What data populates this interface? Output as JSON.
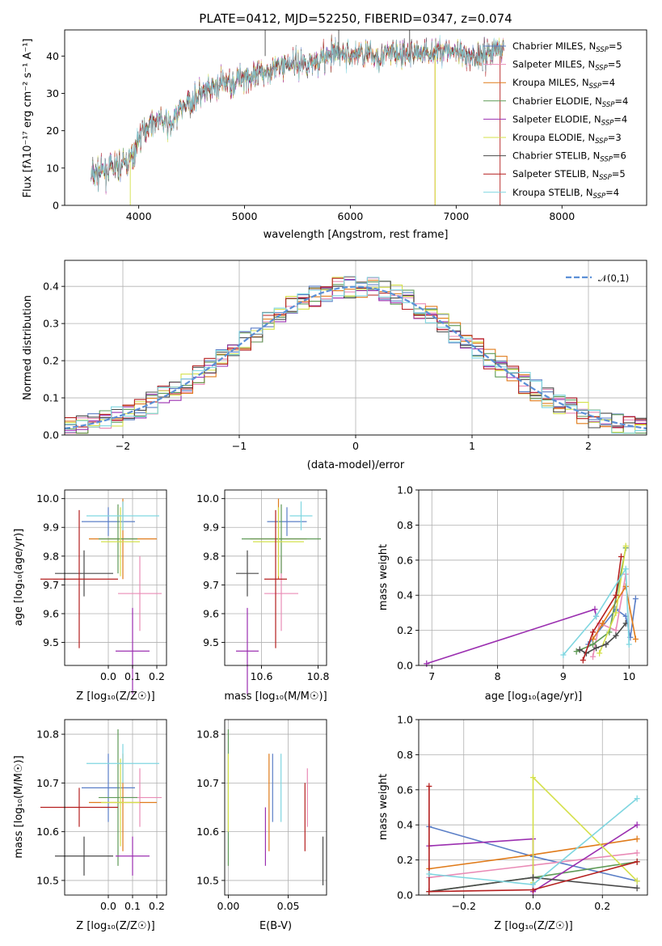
{
  "chart_data": [
    {
      "type": "line",
      "title": "PLATE=0412, MJD=52250, FIBERID=0347, z=0.074",
      "xlabel": "wavelength [Angstrom, rest frame]",
      "ylabel": "Flux [fλ10⁻¹⁷ erg cm⁻² s⁻¹ A⁻¹]",
      "xlim": [
        3300,
        8800
      ],
      "ylim": [
        0,
        47
      ],
      "xticks": [
        "4000",
        "5000",
        "6000",
        "7000",
        "8000"
      ],
      "yticks": [
        "0",
        "10",
        "20",
        "30",
        "40"
      ],
      "legend_position": "right",
      "series": [
        {
          "name": "Chabrier MILES, N_SSP=5",
          "color": "#5b7fc7"
        },
        {
          "name": "Salpeter MILES, N_SSP=5",
          "color": "#e98bb6"
        },
        {
          "name": "Kroupa MILES, N_SSP=4",
          "color": "#e07b1a"
        },
        {
          "name": "Chabrier ELODIE, N_SSP=4",
          "color": "#5f9a57"
        },
        {
          "name": "Salpeter ELODIE, N_SSP=4",
          "color": "#9b2fb0"
        },
        {
          "name": "Kroupa ELODIE, N_SSP=3",
          "color": "#d4e04a"
        },
        {
          "name": "Chabrier STELIB, N_SSP=6",
          "color": "#4a4a4a"
        },
        {
          "name": "Salpeter STELIB, N_SSP=5",
          "color": "#b51f1f"
        },
        {
          "name": "Kroupa STELIB, N_SSP=4",
          "color": "#7fd6e0"
        }
      ],
      "continuum": {
        "x": [
          3550,
          3650,
          3750,
          3850,
          3950,
          4000,
          4100,
          4200,
          4300,
          4400,
          4500,
          4600,
          4700,
          4800,
          4900,
          5000,
          5100,
          5200,
          5300,
          5400,
          5500,
          5600,
          5700,
          5800,
          5900,
          6000,
          6100,
          6200,
          6300,
          6400,
          6500,
          6600,
          6700,
          6800,
          6900,
          7000,
          7100,
          7200,
          7300,
          7400,
          7500
        ],
        "y": [
          8,
          9,
          10,
          11,
          13,
          18,
          22,
          23,
          21,
          26,
          28,
          30,
          31,
          33,
          33,
          35,
          34,
          36,
          37,
          38,
          38,
          38,
          39,
          40,
          41,
          40,
          41,
          40,
          40,
          41,
          40,
          41,
          41,
          41,
          42,
          41,
          39,
          40,
          41,
          42,
          42
        ]
      }
    },
    {
      "type": "bar",
      "xlabel": "(data-model)/error",
      "ylabel": "Normed distribution",
      "xlim": [
        -2.5,
        2.5
      ],
      "ylim": [
        0,
        0.47
      ],
      "xticks": [
        "−2",
        "−1",
        "0",
        "1",
        "2"
      ],
      "yticks": [
        "0.0",
        "0.1",
        "0.2",
        "0.3",
        "0.4"
      ],
      "grid": true,
      "legend": [
        "𝒩(0,1)"
      ],
      "legend_position": "top-right",
      "bin_width": 0.1
    },
    {
      "type": "scatter",
      "xlabel": "Z [log₁₀(Z/Z☉)]",
      "ylabel": "age  [log₁₀(age/yr)]",
      "xlim": [
        -0.18,
        0.24
      ],
      "ylim": [
        9.42,
        10.03
      ],
      "xticks": [
        "0.0",
        "0.1",
        "0.2"
      ],
      "yticks": [
        "9.5",
        "9.6",
        "9.7",
        "9.8",
        "9.9",
        "10.0"
      ],
      "grid": true,
      "points": [
        {
          "x": 0.0,
          "xerr": 0.11,
          "y": 9.92,
          "yerr": 0.05,
          "color": "#5b7fc7"
        },
        {
          "x": 0.13,
          "xerr": 0.09,
          "y": 9.67,
          "yerr": 0.13,
          "color": "#e98bb6"
        },
        {
          "x": 0.06,
          "xerr": 0.14,
          "y": 9.86,
          "yerr": 0.14,
          "color": "#e07b1a"
        },
        {
          "x": 0.04,
          "xerr": 0.08,
          "y": 9.86,
          "yerr": 0.12,
          "color": "#5f9a57"
        },
        {
          "x": 0.1,
          "xerr": 0.07,
          "y": 9.47,
          "yerr": 0.15,
          "color": "#9b2fb0"
        },
        {
          "x": 0.05,
          "xerr": 0.08,
          "y": 9.85,
          "yerr": 0.12,
          "color": "#d4e04a"
        },
        {
          "x": -0.1,
          "xerr": 0.12,
          "y": 9.74,
          "yerr": 0.08,
          "color": "#4a4a4a"
        },
        {
          "x": -0.12,
          "xerr": 0.16,
          "y": 9.72,
          "yerr": 0.24,
          "color": "#b51f1f"
        },
        {
          "x": 0.06,
          "xerr": 0.15,
          "y": 9.94,
          "yerr": 0.05,
          "color": "#7fd6e0"
        }
      ]
    },
    {
      "type": "scatter",
      "xlabel": "mass [log₁₀(M/M☉)]",
      "xlim": [
        10.47,
        10.83
      ],
      "ylim": [
        9.42,
        10.03
      ],
      "xticks": [
        "10.6",
        "10.8"
      ],
      "yticks": [
        "9.5",
        "9.6",
        "9.7",
        "9.8",
        "9.9",
        "10.0"
      ],
      "grid": true,
      "points": [
        {
          "x": 10.69,
          "xerr": 0.07,
          "y": 9.92,
          "yerr": 0.05,
          "color": "#5b7fc7"
        },
        {
          "x": 10.67,
          "xerr": 0.06,
          "y": 9.67,
          "yerr": 0.13,
          "color": "#e98bb6"
        },
        {
          "x": 10.66,
          "xerr": 0.1,
          "y": 9.86,
          "yerr": 0.14,
          "color": "#e07b1a"
        },
        {
          "x": 10.67,
          "xerr": 0.14,
          "y": 9.86,
          "yerr": 0.12,
          "color": "#5f9a57"
        },
        {
          "x": 10.55,
          "xerr": 0.04,
          "y": 9.47,
          "yerr": 0.15,
          "color": "#9b2fb0"
        },
        {
          "x": 10.66,
          "xerr": 0.09,
          "y": 9.85,
          "yerr": 0.12,
          "color": "#d4e04a"
        },
        {
          "x": 10.55,
          "xerr": 0.04,
          "y": 9.74,
          "yerr": 0.08,
          "color": "#4a4a4a"
        },
        {
          "x": 10.65,
          "xerr": 0.04,
          "y": 9.72,
          "yerr": 0.24,
          "color": "#b51f1f"
        },
        {
          "x": 10.74,
          "xerr": 0.04,
          "y": 9.94,
          "yerr": 0.05,
          "color": "#7fd6e0"
        }
      ]
    },
    {
      "type": "line",
      "xlabel": "age  [log₁₀(age/yr)]",
      "ylabel": "mass weight",
      "xlim": [
        6.8,
        10.28
      ],
      "ylim": [
        0,
        1
      ],
      "xticks": [
        "7",
        "8",
        "9",
        "10"
      ],
      "yticks": [
        "0.0",
        "0.2",
        "0.4",
        "0.6",
        "0.8",
        "1.0"
      ],
      "grid": true,
      "series": [
        {
          "color": "#5b7fc7",
          "x": [
            9.38,
            9.8,
            9.95,
            10.02,
            10.1
          ],
          "y": [
            0.12,
            0.32,
            0.28,
            0.16,
            0.38
          ]
        },
        {
          "color": "#e98bb6",
          "x": [
            9.45,
            9.55,
            9.8,
            9.95
          ],
          "y": [
            0.05,
            0.24,
            0.2,
            0.52
          ]
        },
        {
          "color": "#e07b1a",
          "x": [
            9.45,
            9.6,
            9.95,
            10.1
          ],
          "y": [
            0.15,
            0.24,
            0.45,
            0.15
          ]
        },
        {
          "color": "#5f9a57",
          "x": [
            9.2,
            9.45,
            9.7,
            9.95
          ],
          "y": [
            0.08,
            0.12,
            0.19,
            0.67
          ]
        },
        {
          "color": "#9b2fb0",
          "x": [
            6.92,
            9.48,
            9.5
          ],
          "y": [
            0.01,
            0.32,
            0.28
          ]
        },
        {
          "color": "#d4e04a",
          "x": [
            9.55,
            9.8,
            9.95
          ],
          "y": [
            0.07,
            0.3,
            0.68
          ]
        },
        {
          "color": "#4a4a4a",
          "x": [
            9.25,
            9.35,
            9.5,
            9.65,
            9.8,
            9.95
          ],
          "y": [
            0.09,
            0.07,
            0.1,
            0.12,
            0.17,
            0.24
          ]
        },
        {
          "color": "#b51f1f",
          "x": [
            9.3,
            9.45,
            9.8,
            9.88
          ],
          "y": [
            0.03,
            0.19,
            0.4,
            0.62
          ]
        },
        {
          "color": "#7fd6e0",
          "x": [
            9.0,
            9.5,
            9.95,
            10.0
          ],
          "y": [
            0.06,
            0.28,
            0.55,
            0.12
          ]
        }
      ]
    },
    {
      "type": "scatter",
      "xlabel": "Z [log₁₀(Z/Z☉)]",
      "ylabel": "mass [log₁₀(M/M☉)]",
      "xlim": [
        -0.18,
        0.24
      ],
      "ylim": [
        10.47,
        10.83
      ],
      "xticks": [
        "0.0",
        "0.1",
        "0.2"
      ],
      "yticks": [
        "10.5",
        "10.6",
        "10.7",
        "10.8"
      ],
      "grid": true,
      "points": [
        {
          "x": 0.0,
          "xerr": 0.11,
          "y": 10.69,
          "yerr": 0.07,
          "color": "#5b7fc7"
        },
        {
          "x": 0.13,
          "xerr": 0.09,
          "y": 10.67,
          "yerr": 0.06,
          "color": "#e98bb6"
        },
        {
          "x": 0.06,
          "xerr": 0.14,
          "y": 10.66,
          "yerr": 0.1,
          "color": "#e07b1a"
        },
        {
          "x": 0.04,
          "xerr": 0.08,
          "y": 10.67,
          "yerr": 0.14,
          "color": "#5f9a57"
        },
        {
          "x": 0.1,
          "xerr": 0.07,
          "y": 10.55,
          "yerr": 0.04,
          "color": "#9b2fb0"
        },
        {
          "x": 0.05,
          "xerr": 0.08,
          "y": 10.66,
          "yerr": 0.09,
          "color": "#d4e04a"
        },
        {
          "x": -0.1,
          "xerr": 0.12,
          "y": 10.55,
          "yerr": 0.04,
          "color": "#4a4a4a"
        },
        {
          "x": -0.12,
          "xerr": 0.16,
          "y": 10.65,
          "yerr": 0.04,
          "color": "#b51f1f"
        },
        {
          "x": 0.06,
          "xerr": 0.15,
          "y": 10.74,
          "yerr": 0.04,
          "color": "#7fd6e0"
        }
      ]
    },
    {
      "type": "scatter",
      "xlabel": "E(B-V)",
      "xlim": [
        -0.003,
        0.082
      ],
      "ylim": [
        10.47,
        10.83
      ],
      "xticks": [
        "0.00",
        "0.05"
      ],
      "yticks": [
        "10.5",
        "10.6",
        "10.7",
        "10.8"
      ],
      "grid": true,
      "points": [
        {
          "x": 0.037,
          "y": 10.69,
          "yerr": 0.07,
          "color": "#5b7fc7"
        },
        {
          "x": 0.066,
          "y": 10.67,
          "yerr": 0.06,
          "color": "#e98bb6"
        },
        {
          "x": 0.034,
          "y": 10.66,
          "yerr": 0.1,
          "color": "#e07b1a"
        },
        {
          "x": 0.0,
          "y": 10.67,
          "yerr": 0.14,
          "color": "#5f9a57"
        },
        {
          "x": 0.031,
          "y": 10.59,
          "yerr": 0.06,
          "color": "#9b2fb0"
        },
        {
          "x": 0.0,
          "y": 10.68,
          "yerr": 0.08,
          "color": "#d4e04a"
        },
        {
          "x": 0.079,
          "y": 10.54,
          "yerr": 0.05,
          "color": "#4a4a4a"
        },
        {
          "x": 0.064,
          "y": 10.63,
          "yerr": 0.07,
          "color": "#b51f1f"
        },
        {
          "x": 0.044,
          "y": 10.69,
          "yerr": 0.07,
          "color": "#7fd6e0"
        }
      ]
    },
    {
      "type": "line",
      "xlabel": "Z [log₁₀(Z/Z☉)]",
      "ylabel": "mass weight",
      "xlim": [
        -0.33,
        0.33
      ],
      "ylim": [
        0,
        1
      ],
      "xticks": [
        "−0.2",
        "0.0",
        "0.2"
      ],
      "yticks": [
        "0.0",
        "0.2",
        "0.4",
        "0.6",
        "0.8",
        "1.0"
      ],
      "grid": true,
      "series": [
        {
          "color": "#5b7fc7",
          "x": [
            -0.3,
            0.0,
            0.3
          ],
          "y": [
            0.39,
            0.22,
            0.08
          ]
        },
        {
          "color": "#e98bb6",
          "x": [
            -0.3,
            0.0,
            0.3
          ],
          "y": [
            0.1,
            0.17,
            0.24
          ]
        },
        {
          "color": "#e07b1a",
          "x": [
            -0.3,
            0.0,
            0.3
          ],
          "y": [
            0.15,
            0.23,
            0.32
          ]
        },
        {
          "color": "#5f9a57",
          "x": [
            -0.3,
            0.0,
            0.3
          ],
          "y": [
            0.02,
            0.1,
            0.19
          ]
        },
        {
          "color": "#9b2fb0",
          "x": [
            -0.3,
            0.0,
            0.0,
            0.3
          ],
          "y": [
            0.28,
            0.32,
            0.02,
            0.4
          ]
        },
        {
          "color": "#d4e04a",
          "x": [
            0.0,
            0.0,
            0.3
          ],
          "y": [
            0.07,
            0.67,
            0.08
          ]
        },
        {
          "color": "#4a4a4a",
          "x": [
            -0.3,
            0.0,
            0.3
          ],
          "y": [
            0.02,
            0.1,
            0.04
          ]
        },
        {
          "color": "#b51f1f",
          "x": [
            -0.3,
            -0.3,
            0.0,
            0.3
          ],
          "y": [
            0.62,
            0.02,
            0.03,
            0.19
          ]
        },
        {
          "color": "#7fd6e0",
          "x": [
            -0.3,
            0.0,
            0.3
          ],
          "y": [
            0.12,
            0.06,
            0.55
          ]
        }
      ]
    }
  ]
}
